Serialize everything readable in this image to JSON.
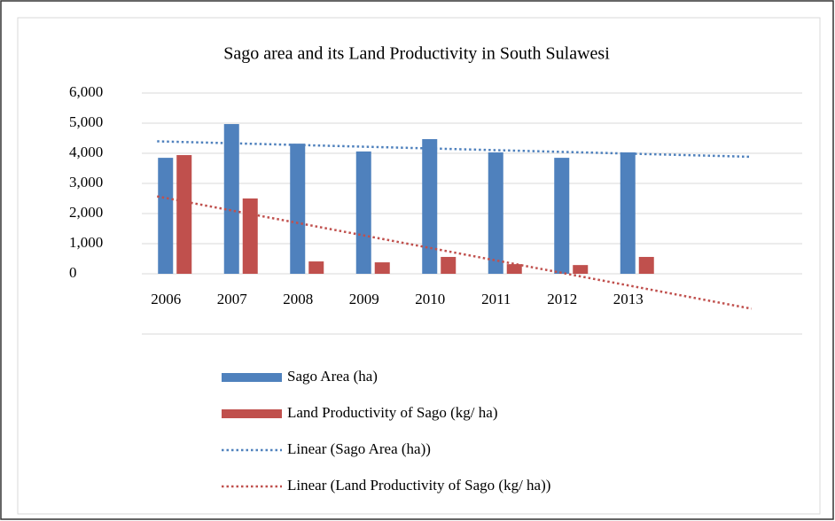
{
  "chart_data": {
    "type": "bar",
    "title": "Sago area and its Land Productivity in South Sulawesi",
    "categories": [
      "2006",
      "2007",
      "2008",
      "2009",
      "2010",
      "2011",
      "2012",
      "2013",
      null,
      null
    ],
    "series": [
      {
        "name": "Sago Area (ha)",
        "color": "#4f81bd",
        "values": [
          3850,
          4970,
          4320,
          4060,
          4470,
          4030,
          3850,
          4030,
          null,
          null
        ]
      },
      {
        "name": "Land Productivity of Sago (kg/ ha)",
        "color": "#c0504d",
        "values": [
          3940,
          2500,
          410,
          380,
          560,
          320,
          290,
          560,
          null,
          null
        ]
      }
    ],
    "trendlines": [
      {
        "name": "Linear (Sago Area (ha))",
        "series": 0
      },
      {
        "name": "Linear (Land Productivity of Sago (kg/ ha))",
        "series": 1
      }
    ],
    "ylim": [
      -2000,
      6000
    ],
    "yticks": [
      0,
      {
        "value": 1000,
        "label": "1,000"
      },
      {
        "value": 2000,
        "label": "2,000"
      },
      {
        "value": 3000,
        "label": "3,000"
      },
      {
        "value": 4000,
        "label": "4,000"
      },
      {
        "value": 5000,
        "label": "5,000"
      },
      {
        "value": 6000,
        "label": "6,000"
      }
    ],
    "grid": true,
    "legend": "bottom"
  }
}
